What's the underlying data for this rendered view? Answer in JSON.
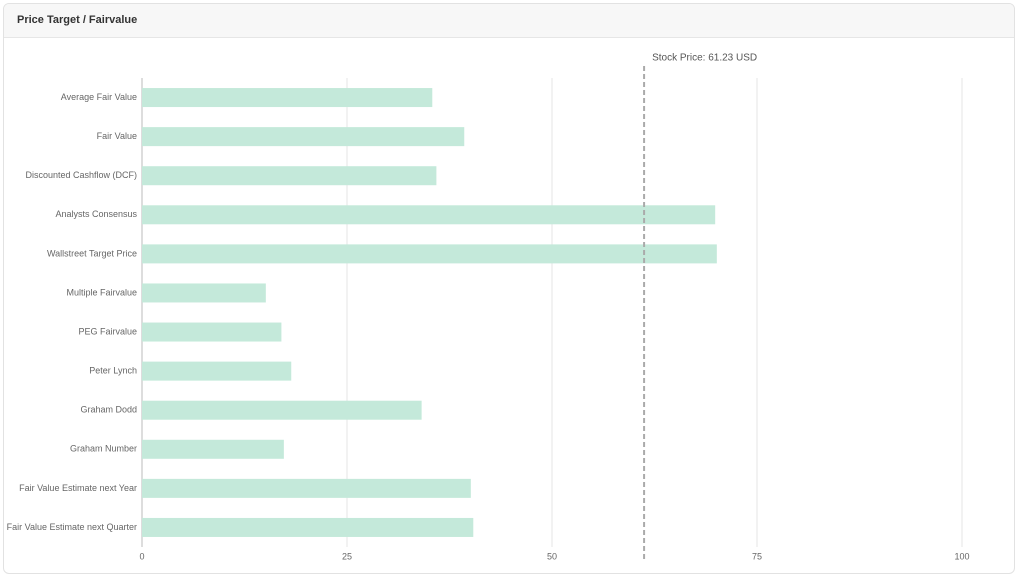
{
  "chart_data": {
    "type": "bar",
    "orientation": "horizontal",
    "title": "Price Target / Fairvalue",
    "categories": [
      "Average Fair Value",
      "Fair Value",
      "Discounted Cashflow (DCF)",
      "Analysts Consensus",
      "Wallstreet Target Price",
      "Multiple Fairvalue",
      "PEG Fairvalue",
      "Peter Lynch",
      "Graham Dodd",
      "Graham Number",
      "Fair Value Estimate next Year",
      "Fair Value Estimate next Quarter"
    ],
    "values": [
      35.4,
      39.3,
      35.9,
      69.9,
      70.1,
      15.1,
      17.0,
      18.2,
      34.1,
      17.3,
      40.1,
      40.4
    ],
    "color": "#c4e9da",
    "xlim": [
      0,
      100
    ],
    "xticks": [
      0,
      25,
      50,
      75,
      100
    ],
    "grid": true,
    "reference_line": {
      "value": 61.23,
      "label": "Stock Price: 61.23 USD"
    }
  }
}
